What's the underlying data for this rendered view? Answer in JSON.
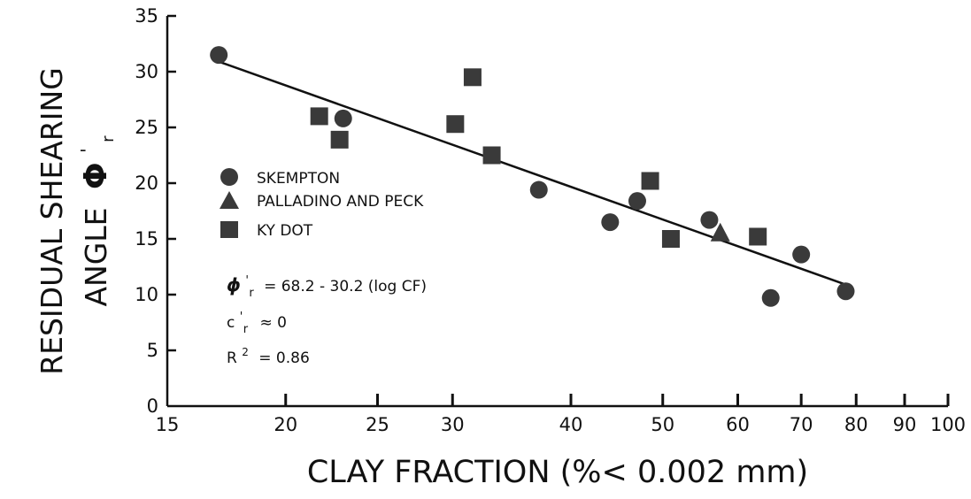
{
  "chart_data": {
    "type": "scatter",
    "x_scale": "log",
    "xlim": [
      15,
      100
    ],
    "ylim": [
      0,
      35
    ],
    "xticks": [
      15,
      20,
      25,
      30,
      40,
      50,
      60,
      70,
      80,
      90,
      100
    ],
    "xtick_labels": [
      "15",
      "20",
      "25",
      "30",
      "40",
      "50",
      "60",
      "70",
      "80",
      "90",
      "100"
    ],
    "yticks": [
      0,
      5,
      10,
      15,
      20,
      25,
      30,
      35
    ],
    "ytick_labels": [
      "0",
      "5",
      "10",
      "15",
      "20",
      "25",
      "30",
      "35"
    ],
    "xlabel": "CLAY FRACTION (%< 0.002 mm)",
    "ylabel_line1": "RESIDUAL SHEARING",
    "ylabel_line2": "ANGLE",
    "ylabel_symbol": "Φ",
    "ylabel_prime": "'",
    "ylabel_sub": "r",
    "grid": false,
    "legend_position": "left-middle",
    "series": [
      {
        "name": "SKEMPTON",
        "marker": "circle",
        "x": [
          17,
          23,
          37,
          44,
          47,
          56,
          65,
          70,
          78
        ],
        "y": [
          31.5,
          25.8,
          19.4,
          16.5,
          18.4,
          16.7,
          9.7,
          13.6,
          10.3
        ]
      },
      {
        "name": "PALLADINO AND PECK",
        "marker": "triangle",
        "x": [
          57.5
        ],
        "y": [
          15.5
        ]
      },
      {
        "name": "KY DOT",
        "marker": "square",
        "x": [
          21.7,
          22.8,
          30.2,
          31.5,
          33,
          48.5,
          51,
          63
        ],
        "y": [
          26,
          23.9,
          25.3,
          29.5,
          22.5,
          20.2,
          15,
          15.2
        ]
      }
    ],
    "fit_line": {
      "equation": "ϕr' = 68.2 - 30.2 log(CF)",
      "x": [
        17,
        78
      ],
      "y": [
        30.9,
        10.9
      ]
    },
    "annotations": {
      "eq_phi": "ϕ",
      "eq_prime": "'",
      "eq_sub": "r",
      "eq_rest": "= 68.2 - 30.2 (log CF)",
      "c_c": "c",
      "c_prime": "'",
      "c_sub": "r",
      "c_rest": "≈ 0",
      "r_base": "R",
      "r_exp": "2",
      "r_rest": "= 0.86"
    },
    "colors": {
      "marker": "#3a3a3a",
      "line": "#111111",
      "axis": "#111111"
    }
  }
}
